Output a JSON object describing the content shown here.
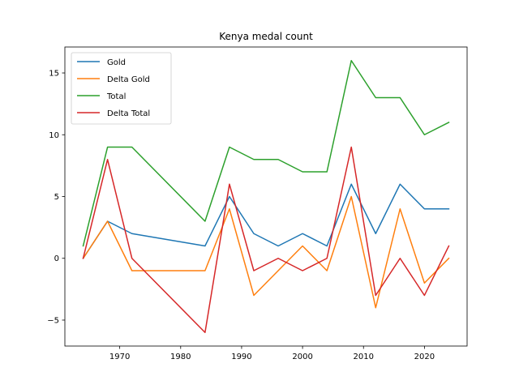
{
  "chart_data": {
    "type": "line",
    "title": "Kenya medal count",
    "xlabel": "",
    "ylabel": "",
    "xlim": [
      1961,
      2027
    ],
    "ylim": [
      -7.1,
      17.1
    ],
    "xticks": [
      1970,
      1980,
      1990,
      2000,
      2010,
      2020
    ],
    "yticks": [
      -5,
      0,
      5,
      10,
      15
    ],
    "x": [
      1964,
      1968,
      1972,
      1984,
      1988,
      1992,
      1996,
      2000,
      2004,
      2008,
      2012,
      2016,
      2020,
      2024
    ],
    "legend_position": "top-left",
    "grid": false,
    "series": [
      {
        "name": "Gold",
        "color": "#1f77b4",
        "values": [
          0,
          3,
          2,
          1,
          5,
          2,
          1,
          2,
          1,
          6,
          2,
          6,
          4,
          4
        ]
      },
      {
        "name": "Delta Gold",
        "color": "#ff7f0e",
        "values": [
          0,
          3,
          -1,
          -1,
          4,
          -3,
          -1,
          1,
          -1,
          5,
          -4,
          4,
          -2,
          0
        ]
      },
      {
        "name": "Total",
        "color": "#2ca02c",
        "values": [
          1,
          9,
          9,
          3,
          9,
          8,
          8,
          7,
          7,
          16,
          13,
          13,
          10,
          11
        ]
      },
      {
        "name": "Delta Total",
        "color": "#d62728",
        "values": [
          0,
          8,
          0,
          -6,
          6,
          -1,
          0,
          -1,
          0,
          9,
          -3,
          0,
          -3,
          1
        ]
      }
    ]
  }
}
